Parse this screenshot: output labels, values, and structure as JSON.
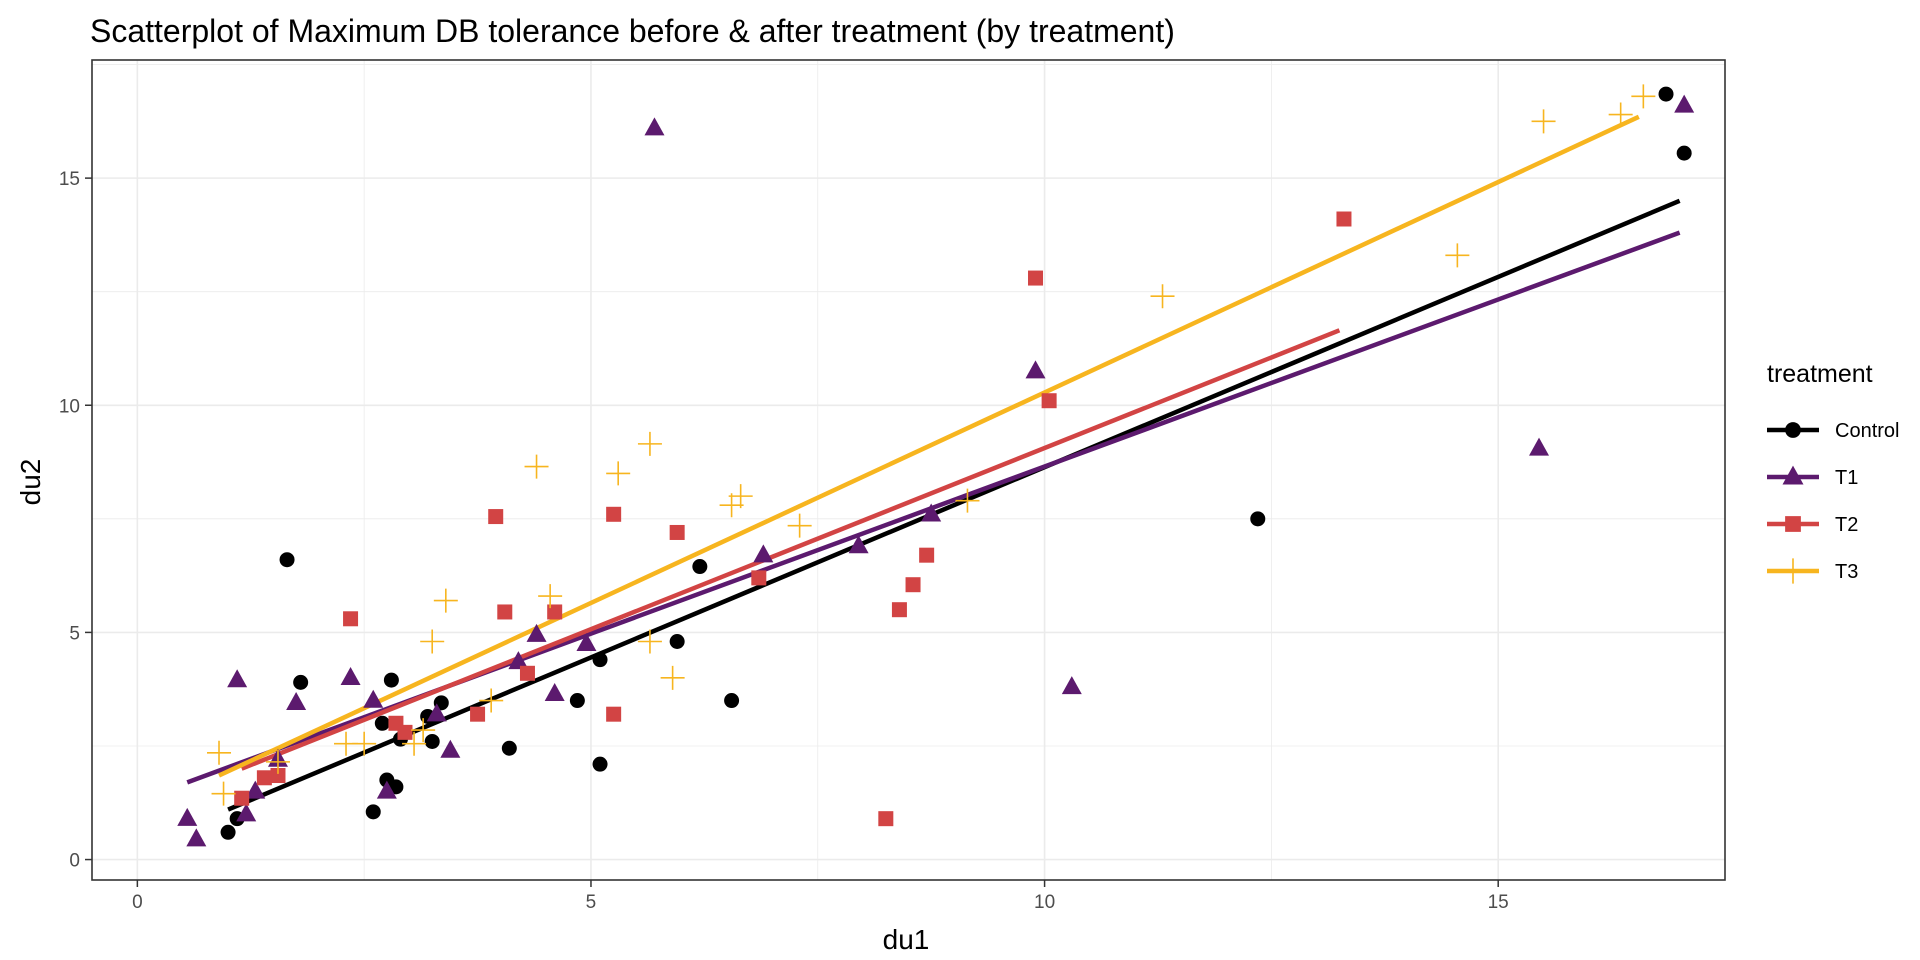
{
  "chart_data": {
    "type": "scatter",
    "title": "Scatterplot of Maximum DB tolerance before & after treatment (by treatment)",
    "xlabel": "du1",
    "ylabel": "du2",
    "xlim": [
      -0.5,
      17.5
    ],
    "ylim": [
      -0.45,
      17.6
    ],
    "x_ticks": [
      0,
      5,
      10,
      15
    ],
    "y_ticks": [
      0,
      5,
      10,
      15
    ],
    "x_tick_labels": [
      "0",
      "5",
      "10",
      "15"
    ],
    "y_tick_labels": [
      "0",
      "5",
      "10",
      "15"
    ],
    "grid": true,
    "legend": {
      "title": "treatment",
      "position": "right"
    },
    "series": [
      {
        "name": "Control",
        "color": "#000000",
        "marker": "circle",
        "points": [
          [
            1.0,
            0.6
          ],
          [
            1.1,
            0.9
          ],
          [
            1.8,
            3.9
          ],
          [
            1.65,
            6.6
          ],
          [
            2.6,
            1.05
          ],
          [
            2.7,
            3.0
          ],
          [
            2.8,
            3.95
          ],
          [
            2.75,
            1.75
          ],
          [
            2.85,
            1.6
          ],
          [
            2.9,
            2.65
          ],
          [
            3.2,
            3.15
          ],
          [
            3.25,
            2.6
          ],
          [
            3.35,
            3.45
          ],
          [
            4.1,
            2.45
          ],
          [
            4.85,
            3.5
          ],
          [
            5.1,
            2.1
          ],
          [
            5.1,
            4.4
          ],
          [
            5.95,
            4.8
          ],
          [
            6.2,
            6.45
          ],
          [
            6.55,
            3.5
          ],
          [
            12.35,
            7.5
          ],
          [
            16.85,
            16.85
          ],
          [
            17.05,
            15.55
          ]
        ],
        "fit": [
          [
            1.0,
            1.1
          ],
          [
            17.0,
            14.5
          ]
        ]
      },
      {
        "name": "T1",
        "color": "#5c1a6e",
        "marker": "triangle",
        "points": [
          [
            0.55,
            0.9
          ],
          [
            0.65,
            0.45
          ],
          [
            1.1,
            3.95
          ],
          [
            1.2,
            1.0
          ],
          [
            1.3,
            1.5
          ],
          [
            1.55,
            2.2
          ],
          [
            1.75,
            3.45
          ],
          [
            2.35,
            4.0
          ],
          [
            2.6,
            3.5
          ],
          [
            2.75,
            1.5
          ],
          [
            3.3,
            3.2
          ],
          [
            3.45,
            2.4
          ],
          [
            4.2,
            4.35
          ],
          [
            4.4,
            4.95
          ],
          [
            4.6,
            3.65
          ],
          [
            4.95,
            4.75
          ],
          [
            5.7,
            16.1
          ],
          [
            6.9,
            6.7
          ],
          [
            7.95,
            6.9
          ],
          [
            8.75,
            7.6
          ],
          [
            9.9,
            10.75
          ],
          [
            10.3,
            3.8
          ],
          [
            15.45,
            9.05
          ],
          [
            17.05,
            16.6
          ]
        ],
        "fit": [
          [
            0.55,
            1.7
          ],
          [
            17.0,
            13.8
          ]
        ]
      },
      {
        "name": "T2",
        "color": "#d24444",
        "marker": "square",
        "points": [
          [
            1.15,
            1.35
          ],
          [
            1.4,
            1.8
          ],
          [
            1.55,
            1.85
          ],
          [
            2.35,
            5.3
          ],
          [
            2.85,
            3.0
          ],
          [
            2.95,
            2.8
          ],
          [
            3.75,
            3.2
          ],
          [
            3.95,
            7.55
          ],
          [
            4.05,
            5.45
          ],
          [
            4.3,
            4.1
          ],
          [
            4.6,
            5.45
          ],
          [
            5.25,
            7.6
          ],
          [
            5.25,
            3.2
          ],
          [
            5.95,
            7.2
          ],
          [
            6.85,
            6.2
          ],
          [
            8.25,
            0.9
          ],
          [
            8.4,
            5.5
          ],
          [
            8.55,
            6.05
          ],
          [
            8.7,
            6.7
          ],
          [
            9.9,
            12.8
          ],
          [
            10.05,
            10.1
          ],
          [
            13.3,
            14.1
          ]
        ],
        "fit": [
          [
            1.15,
            2.0
          ],
          [
            13.25,
            11.65
          ]
        ]
      },
      {
        "name": "T3",
        "color": "#f7b51f",
        "marker": "plus",
        "points": [
          [
            0.9,
            2.35
          ],
          [
            0.95,
            1.45
          ],
          [
            1.55,
            2.15
          ],
          [
            2.3,
            2.55
          ],
          [
            2.5,
            2.55
          ],
          [
            3.05,
            2.55
          ],
          [
            3.15,
            2.85
          ],
          [
            3.25,
            4.8
          ],
          [
            3.4,
            5.7
          ],
          [
            3.9,
            3.5
          ],
          [
            4.4,
            8.65
          ],
          [
            4.55,
            5.8
          ],
          [
            5.3,
            8.5
          ],
          [
            5.65,
            9.15
          ],
          [
            5.65,
            4.8
          ],
          [
            5.9,
            4.0
          ],
          [
            6.55,
            7.8
          ],
          [
            6.65,
            8.0
          ],
          [
            7.3,
            7.35
          ],
          [
            9.15,
            7.9
          ],
          [
            11.3,
            12.4
          ],
          [
            14.55,
            13.3
          ],
          [
            15.5,
            16.25
          ],
          [
            16.35,
            16.4
          ],
          [
            16.6,
            16.8
          ]
        ],
        "fit": [
          [
            0.9,
            1.85
          ],
          [
            16.55,
            16.35
          ]
        ]
      }
    ]
  }
}
